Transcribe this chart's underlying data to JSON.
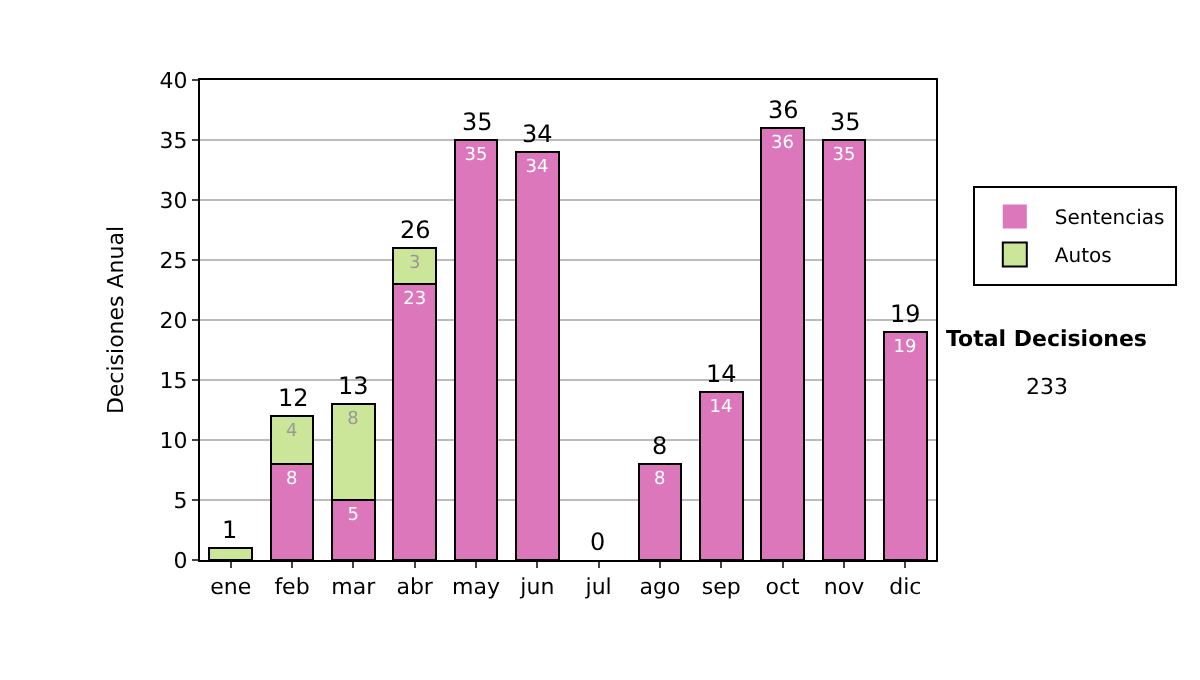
{
  "chart_data": {
    "type": "bar",
    "stacked": true,
    "ylabel": "Decisiones Anual",
    "categories": [
      "ene",
      "feb",
      "mar",
      "abr",
      "may",
      "jun",
      "jul",
      "ago",
      "sep",
      "oct",
      "nov",
      "dic"
    ],
    "series": [
      {
        "name": "Sentencias",
        "color": "#dd77bb",
        "values": [
          0,
          8,
          5,
          23,
          35,
          34,
          0,
          8,
          14,
          36,
          35,
          19
        ],
        "value_labels": [
          null,
          "8",
          "5",
          "23",
          "35",
          "34",
          null,
          "8",
          "14",
          "36",
          "35",
          "19"
        ]
      },
      {
        "name": "Autos",
        "color": "#cce699",
        "values": [
          1,
          4,
          8,
          3,
          0,
          0,
          0,
          0,
          0,
          0,
          0,
          0
        ],
        "value_labels": [
          null,
          "4",
          "8",
          "3",
          null,
          null,
          null,
          null,
          null,
          null,
          null,
          null
        ]
      }
    ],
    "totals": [
      "1",
      "12",
      "13",
      "26",
      "35",
      "34",
      "0",
      "8",
      "14",
      "36",
      "35",
      "19"
    ],
    "ylim": [
      0,
      40
    ],
    "yticks": [
      0,
      5,
      10,
      15,
      20,
      25,
      30,
      35,
      40
    ],
    "grid": "y",
    "legend": "right",
    "annotations": [
      "Total Decisiones",
      "233"
    ]
  }
}
